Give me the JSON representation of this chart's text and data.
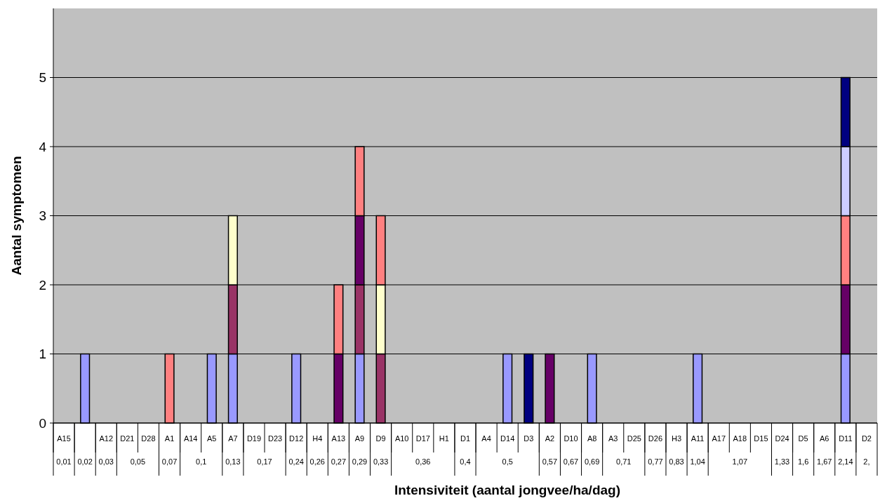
{
  "chart_data": {
    "type": "bar",
    "stacked": true,
    "xlabel": "Intensiviteit (aantal jongvee/ha/dag)",
    "ylabel": "Aantal symptomen",
    "ylim": [
      0,
      6
    ],
    "yticks": [
      0,
      1,
      2,
      3,
      4,
      5
    ],
    "grid": "y",
    "categories": [
      "A15",
      null,
      "A12",
      "D21",
      "D28",
      "A1",
      "A14",
      "A5",
      "A7",
      "D19",
      "D23",
      "D12",
      "H4",
      "A13",
      "A9",
      "D9",
      "A10",
      "D17",
      "H1",
      "D1",
      "A4",
      "D14",
      "D3",
      "A2",
      "D10",
      "A8",
      "A3",
      "D25",
      "D26",
      "H3",
      "A11",
      "A17",
      "A18",
      "D15",
      "D24",
      "D5",
      "A6",
      "D11",
      "D2"
    ],
    "series": [
      {
        "color": "#9999ff",
        "values": [
          0,
          1,
          0,
          0,
          0,
          0,
          0,
          1,
          1,
          0,
          0,
          1,
          0,
          0,
          1,
          0,
          0,
          0,
          0,
          0,
          0,
          1,
          0,
          0,
          0,
          1,
          0,
          0,
          0,
          0,
          1,
          0,
          0,
          0,
          0,
          0,
          0,
          1,
          0
        ]
      },
      {
        "color": "#993366",
        "values": [
          0,
          0,
          0,
          0,
          0,
          0,
          0,
          0,
          1,
          0,
          0,
          0,
          0,
          0,
          1,
          1,
          0,
          0,
          0,
          0,
          0,
          0,
          0,
          0,
          0,
          0,
          0,
          0,
          0,
          0,
          0,
          0,
          0,
          0,
          0,
          0,
          0,
          0,
          0
        ]
      },
      {
        "color": "#ffffcc",
        "values": [
          0,
          0,
          0,
          0,
          0,
          0,
          0,
          0,
          1,
          0,
          0,
          0,
          0,
          0,
          0,
          1,
          0,
          0,
          0,
          0,
          0,
          0,
          0,
          0,
          0,
          0,
          0,
          0,
          0,
          0,
          0,
          0,
          0,
          0,
          0,
          0,
          0,
          0,
          0
        ]
      },
      {
        "color": "#660066",
        "values": [
          0,
          0,
          0,
          0,
          0,
          0,
          0,
          0,
          0,
          0,
          0,
          0,
          0,
          1,
          1,
          0,
          0,
          0,
          0,
          0,
          0,
          0,
          0,
          1,
          0,
          0,
          0,
          0,
          0,
          0,
          0,
          0,
          0,
          0,
          0,
          0,
          0,
          1,
          0
        ]
      },
      {
        "color": "#ff8080",
        "values": [
          0,
          0,
          0,
          0,
          0,
          1,
          0,
          0,
          0,
          0,
          0,
          0,
          0,
          1,
          1,
          1,
          0,
          0,
          0,
          0,
          0,
          0,
          0,
          0,
          0,
          0,
          0,
          0,
          0,
          0,
          0,
          0,
          0,
          0,
          0,
          0,
          0,
          1,
          0
        ]
      },
      {
        "color": "#ccccff",
        "values": [
          0,
          0,
          0,
          0,
          0,
          0,
          0,
          0,
          0,
          0,
          0,
          0,
          0,
          0,
          0,
          0,
          0,
          0,
          0,
          0,
          0,
          0,
          0,
          0,
          0,
          0,
          0,
          0,
          0,
          0,
          0,
          0,
          0,
          0,
          0,
          0,
          0,
          1,
          0
        ]
      },
      {
        "color": "#000080",
        "values": [
          0,
          0,
          0,
          0,
          0,
          0,
          0,
          0,
          0,
          0,
          0,
          0,
          0,
          0,
          0,
          0,
          0,
          0,
          0,
          0,
          0,
          0,
          1,
          0,
          0,
          0,
          0,
          0,
          0,
          0,
          0,
          0,
          0,
          0,
          0,
          0,
          0,
          1,
          0
        ]
      }
    ],
    "annotations": [
      "0,01",
      "0,02",
      "0,03",
      "0,05",
      "0,07",
      "0,1",
      "0,13",
      "0,17",
      "0,24",
      "0,26",
      "0,27",
      "0,29",
      "0,33",
      "0,36",
      "0,4",
      "0,5",
      "0,57",
      "0,67",
      "0,69",
      "0,71",
      "0,77",
      "0,83",
      "1,04",
      "1,07",
      "1,33",
      "1,6",
      "1,67",
      "2,14",
      "2,"
    ]
  }
}
